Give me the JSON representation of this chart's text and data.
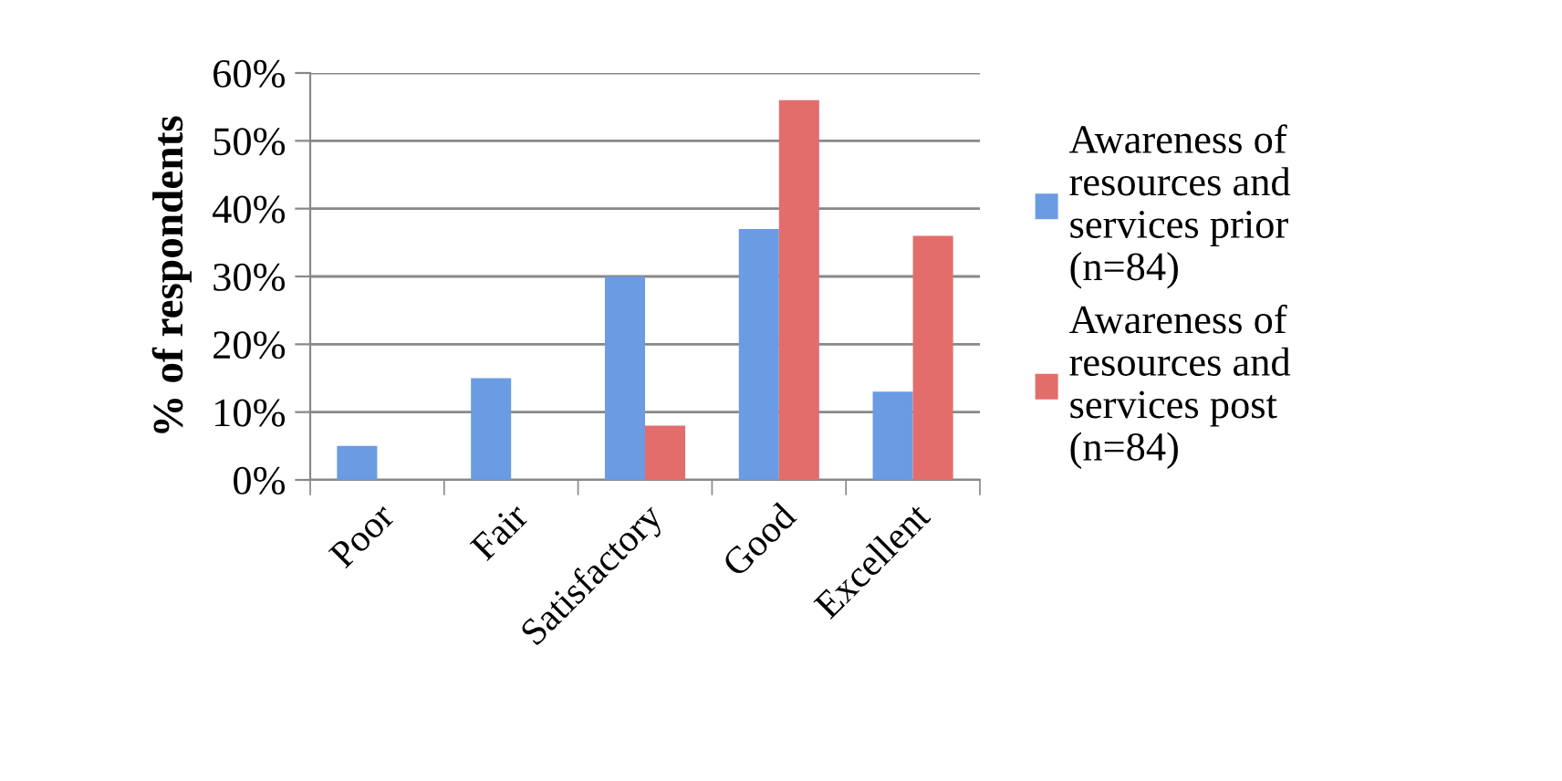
{
  "chart_data": {
    "type": "bar",
    "ylabel": "% of respondents",
    "categories": [
      "Poor",
      "Fair",
      "Satisfactory",
      "Good",
      "Excellent"
    ],
    "series": [
      {
        "name": "Awareness of resources and services prior (n=84)",
        "color": "#6b9be3",
        "values": [
          5,
          15,
          30,
          37,
          13
        ]
      },
      {
        "name": "Awareness of resources and services post (n=84)",
        "color": "#e36d6b",
        "values": [
          0,
          0,
          8,
          56,
          36
        ]
      }
    ],
    "ylim": [
      0,
      60
    ],
    "yticks": [
      {
        "value": 0,
        "label": "0%"
      },
      {
        "value": 10,
        "label": "10%"
      },
      {
        "value": 20,
        "label": "20%"
      },
      {
        "value": 30,
        "label": "30%"
      },
      {
        "value": 40,
        "label": "40%"
      },
      {
        "value": 50,
        "label": "50%"
      },
      {
        "value": 60,
        "label": "60%"
      }
    ],
    "grid": "y",
    "legend": "right"
  }
}
